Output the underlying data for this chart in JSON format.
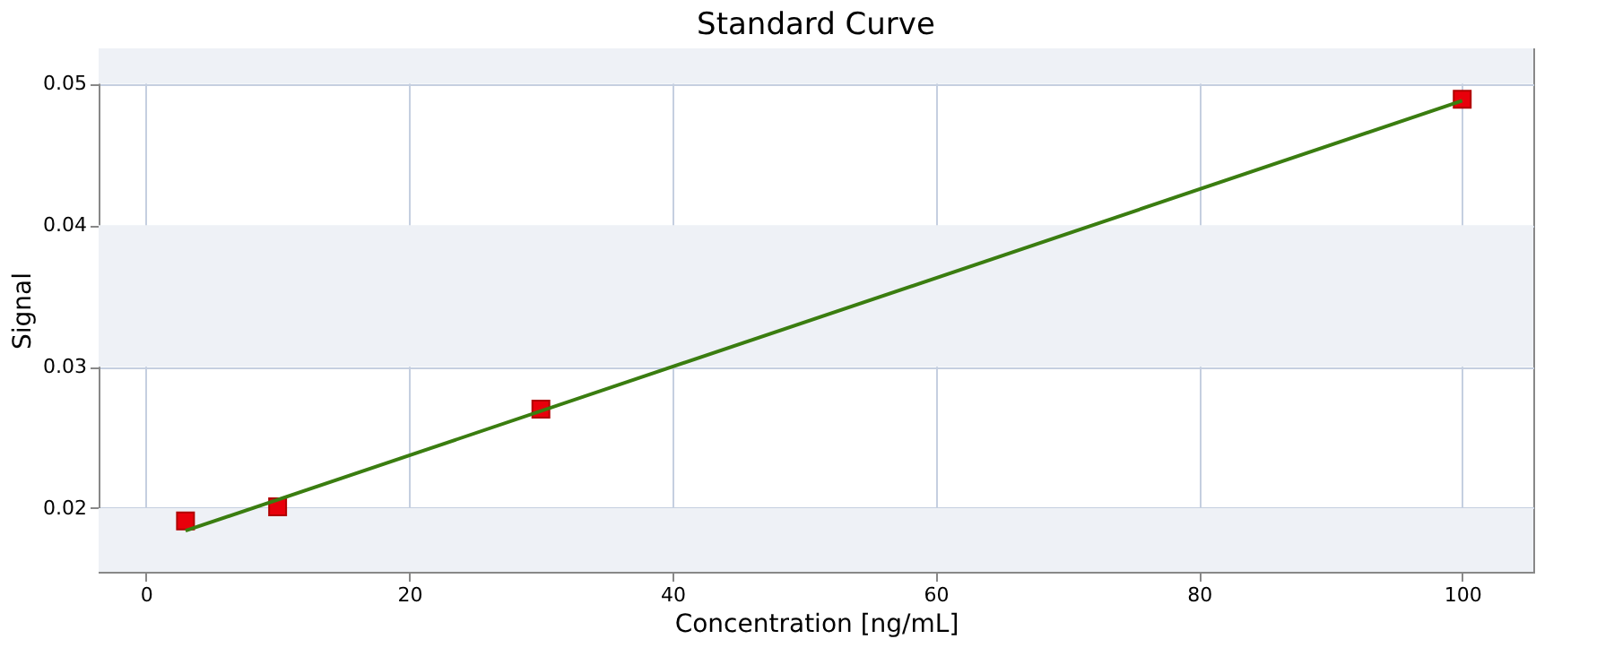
{
  "chart_data": {
    "type": "scatter",
    "title": "Standard Curve",
    "xlabel": "Concentration [ng/mL]",
    "ylabel": "Signal",
    "xlim": [
      -3.6,
      105.4
    ],
    "xticks": [
      0,
      20,
      40,
      60,
      80,
      100
    ],
    "ylim": [
      0.0155,
      0.0525
    ],
    "yticks": [
      0.02,
      0.03,
      0.04,
      0.05
    ],
    "grid": true,
    "bands": [
      {
        "axis": "y",
        "from": 0.0155,
        "to": 0.02,
        "color": "#eef1f6"
      },
      {
        "axis": "y",
        "from": 0.03,
        "to": 0.04,
        "color": "#eef1f6"
      },
      {
        "axis": "y",
        "from": 0.05,
        "to": 0.0525,
        "color": "#eef1f6"
      }
    ],
    "series": [
      {
        "color": "#e8000b",
        "marker": "square",
        "x": [
          3,
          10,
          30,
          100
        ],
        "values": [
          0.0191,
          0.0201,
          0.027,
          0.0489
        ]
      },
      {
        "type": "line",
        "color": "#3a7d10",
        "line_style": "solid",
        "marker": "none",
        "x": [
          3,
          100
        ],
        "values": [
          0.0184,
          0.0488
        ]
      }
    ]
  }
}
